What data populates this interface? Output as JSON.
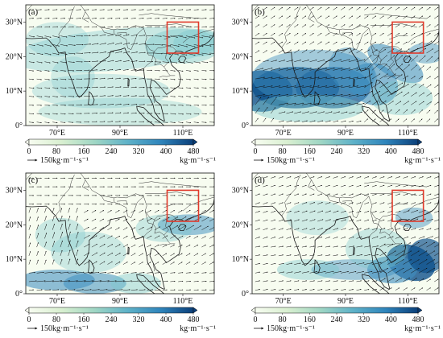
{
  "panels": [
    {
      "id": "a",
      "label": "(a)"
    },
    {
      "id": "b",
      "label": "(b)"
    },
    {
      "id": "c",
      "label": "(c)"
    },
    {
      "id": "d",
      "label": "(d)"
    }
  ],
  "axes": {
    "lat_ticks": [
      "0°",
      "10°N",
      "20°N",
      "30°N"
    ],
    "lon_ticks": [
      "70°E",
      "90°E",
      "110°E"
    ]
  },
  "colorbar": {
    "ticks": [
      "0",
      "80",
      "160",
      "240",
      "320",
      "400",
      "480"
    ],
    "unit": "kg·m⁻¹·s⁻¹",
    "range": [
      0,
      480
    ]
  },
  "reference_vector": {
    "label": "150kg·m⁻¹·s⁻¹",
    "value": 150
  },
  "colors": {
    "low": "#f7fcf0",
    "mid": "#7bc7cc",
    "high": "#0b4f8a",
    "box": "#e0392b",
    "coast": "#1a1a1a"
  },
  "map_data": {
    "extent": {
      "lon": [
        60,
        120
      ],
      "lat": [
        0,
        35
      ]
    },
    "region_box": {
      "lon": [
        105,
        115
      ],
      "lat": [
        21,
        30
      ]
    }
  }
}
